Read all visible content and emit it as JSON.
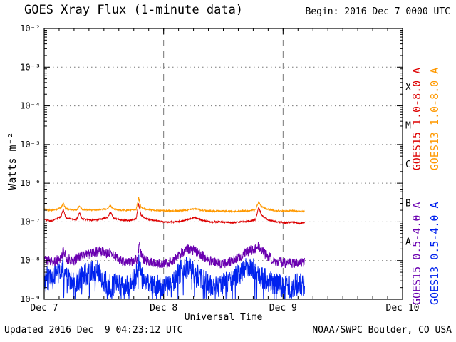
{
  "header": {
    "begin_label": "Begin: 2016 Dec 7 0000 UTC"
  },
  "footer": {
    "updated": "Updated 2016 Dec  9 04:23:12 UTC",
    "source": "NOAA/SWPC Boulder, CO USA"
  },
  "chart_data": {
    "type": "line",
    "title": "GOES Xray Flux (1-minute data)",
    "xlabel": "Universal Time",
    "ylabel": "Watts m⁻²",
    "x_axis": {
      "range_days": [
        0,
        3
      ],
      "tick_days": [
        0,
        1,
        2,
        3
      ],
      "tick_labels": [
        "Dec 7",
        "Dec 8",
        "Dec 9",
        "Dec 10"
      ],
      "minor_tick_interval_days": 0.125
    },
    "y_axis": {
      "log_range": [
        -9,
        -2
      ],
      "scale": "log",
      "tick_logs": [
        -2,
        -3,
        -4,
        -5,
        -6,
        -7,
        -8,
        -9
      ],
      "tick_labels": [
        "10⁻²",
        "10⁻³",
        "10⁻⁴",
        "10⁻⁵",
        "10⁻⁶",
        "10⁻⁷",
        "10⁻⁸",
        "10⁻⁹"
      ]
    },
    "flare_classes": [
      {
        "label": "X",
        "log_center": -3.5
      },
      {
        "label": "M",
        "log_center": -4.5
      },
      {
        "label": "C",
        "log_center": -5.5
      },
      {
        "label": "B",
        "log_center": -6.5
      },
      {
        "label": "A",
        "log_center": -7.5
      }
    ],
    "grid": {
      "horizontal": "dotted",
      "vertical_day_lines": "dashed"
    },
    "series": [
      {
        "name": "GOES15 1.0-8.0 A",
        "color": "#dd0000",
        "noise_dex": 0.02,
        "x": [
          0.0,
          0.06,
          0.1,
          0.14,
          0.16,
          0.18,
          0.22,
          0.27,
          0.295,
          0.32,
          0.4,
          0.48,
          0.53,
          0.555,
          0.58,
          0.65,
          0.72,
          0.77,
          0.79,
          0.81,
          0.85,
          0.92,
          1.0,
          1.08,
          1.15,
          1.22,
          1.26,
          1.32,
          1.4,
          1.5,
          1.58,
          1.65,
          1.72,
          1.77,
          1.795,
          1.82,
          1.87,
          1.95,
          2.02,
          2.08,
          2.13,
          2.18
        ],
        "y": [
          1.15e-07,
          1.05e-07,
          1.2e-07,
          1.35e-07,
          2.1e-07,
          1.3e-07,
          1.2e-07,
          1.15e-07,
          1.7e-07,
          1.2e-07,
          1.1e-07,
          1.2e-07,
          1.3e-07,
          1.8e-07,
          1.25e-07,
          1.1e-07,
          1.1e-07,
          1.2e-07,
          3e-07,
          1.5e-07,
          1.2e-07,
          1.1e-07,
          1e-07,
          1e-07,
          1.05e-07,
          1.2e-07,
          1.3e-07,
          1.1e-07,
          1e-07,
          1e-07,
          9.5e-08,
          1e-07,
          1.05e-07,
          1.15e-07,
          2.4e-07,
          1.5e-07,
          1.15e-07,
          1e-07,
          9.5e-08,
          1e-07,
          9e-08,
          9.5e-08
        ]
      },
      {
        "name": "GOES13 1.0-8.0 A",
        "color": "#ff9900",
        "noise_dex": 0.02,
        "x": [
          0.0,
          0.06,
          0.1,
          0.14,
          0.16,
          0.18,
          0.22,
          0.27,
          0.295,
          0.32,
          0.4,
          0.48,
          0.53,
          0.555,
          0.58,
          0.65,
          0.72,
          0.77,
          0.79,
          0.81,
          0.85,
          0.92,
          1.0,
          1.08,
          1.15,
          1.22,
          1.26,
          1.32,
          1.4,
          1.5,
          1.58,
          1.65,
          1.72,
          1.77,
          1.795,
          1.82,
          1.87,
          1.95,
          2.02,
          2.08,
          2.13,
          2.18
        ],
        "y": [
          2.1e-07,
          2e-07,
          2.1e-07,
          2.3e-07,
          3e-07,
          2.2e-07,
          2.1e-07,
          2e-07,
          2.6e-07,
          2.1e-07,
          2e-07,
          2.1e-07,
          2.2e-07,
          2.6e-07,
          2.15e-07,
          2e-07,
          2e-07,
          2.1e-07,
          4.2e-07,
          2.4e-07,
          2.1e-07,
          2e-07,
          1.95e-07,
          1.9e-07,
          1.95e-07,
          2.1e-07,
          2.2e-07,
          2e-07,
          1.9e-07,
          1.9e-07,
          1.85e-07,
          1.9e-07,
          1.95e-07,
          2.1e-07,
          3.3e-07,
          2.5e-07,
          2.1e-07,
          1.95e-07,
          1.9e-07,
          1.95e-07,
          1.85e-07,
          1.9e-07
        ]
      },
      {
        "name": "GOES15 0.5-4.0 A",
        "color": "#6a00b0",
        "noise_dex": 0.13,
        "x": [
          0.0,
          0.08,
          0.14,
          0.16,
          0.19,
          0.25,
          0.3,
          0.36,
          0.42,
          0.47,
          0.52,
          0.56,
          0.62,
          0.68,
          0.74,
          0.78,
          0.795,
          0.82,
          0.88,
          0.95,
          1.02,
          1.08,
          1.14,
          1.2,
          1.26,
          1.32,
          1.38,
          1.45,
          1.52,
          1.58,
          1.64,
          1.7,
          1.76,
          1.8,
          1.85,
          1.92,
          1.98,
          2.05,
          2.11,
          2.18
        ],
        "y": [
          1.1e-08,
          9e-09,
          1.2e-08,
          1.8e-08,
          1.1e-08,
          1e-08,
          1.3e-08,
          1.4e-08,
          1.6e-08,
          1.8e-08,
          1.5e-08,
          1.6e-08,
          1.1e-08,
          9e-09,
          9.5e-09,
          1.1e-08,
          2.6e-08,
          1.2e-08,
          9e-09,
          8.5e-09,
          8.5e-09,
          1e-08,
          1.5e-08,
          2e-08,
          1.8e-08,
          1.4e-08,
          1e-08,
          9e-09,
          8.5e-09,
          1e-08,
          1.3e-08,
          1.7e-08,
          2e-08,
          2.4e-08,
          1.5e-08,
          1e-08,
          9e-09,
          8.5e-09,
          8.5e-09,
          9e-09
        ]
      },
      {
        "name": "GOES13 0.5-4.0 A",
        "color": "#0022ee",
        "noise_dex": 0.3,
        "dropout_prob": 0.12,
        "dropout_dex": 0.7,
        "x": [
          0.0,
          0.06,
          0.12,
          0.16,
          0.2,
          0.26,
          0.32,
          0.38,
          0.44,
          0.5,
          0.56,
          0.62,
          0.68,
          0.74,
          0.795,
          0.84,
          0.9,
          0.96,
          1.02,
          1.08,
          1.14,
          1.2,
          1.26,
          1.32,
          1.38,
          1.45,
          1.52,
          1.58,
          1.64,
          1.7,
          1.76,
          1.82,
          1.88,
          1.94,
          2.0,
          2.06,
          2.12,
          2.18
        ],
        "y": [
          4e-09,
          3e-09,
          5e-09,
          7e-09,
          3.5e-09,
          2.5e-09,
          4e-09,
          5e-09,
          6e-09,
          3e-09,
          2.2e-09,
          2.5e-09,
          2.2e-09,
          2.5e-09,
          8e-09,
          3.5e-09,
          2.5e-09,
          2.2e-09,
          2e-09,
          3e-09,
          5e-09,
          7e-09,
          5e-09,
          3.5e-09,
          2.5e-09,
          2.2e-09,
          2.5e-09,
          3.5e-09,
          5e-09,
          7e-09,
          6e-09,
          4e-09,
          3e-09,
          2.5e-09,
          2.2e-09,
          2e-09,
          2.5e-09,
          2.2e-09
        ]
      }
    ]
  }
}
